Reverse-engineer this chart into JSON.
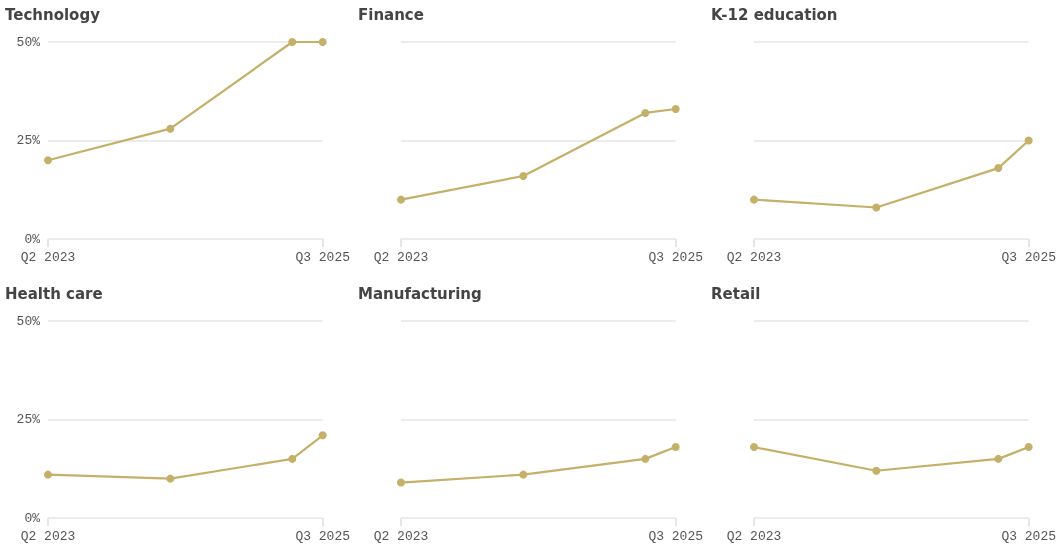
{
  "chart_data": [
    {
      "type": "line",
      "title": "Technology",
      "x": [
        "2023-04",
        "2024-04",
        "2025-04",
        "2025-07"
      ],
      "series": [
        {
          "color": "#c4b068",
          "values": [
            20,
            28,
            50,
            50
          ]
        }
      ],
      "xlim": [
        "2023-04",
        "2025-07"
      ],
      "xticks": [
        {
          "value": "2023-04",
          "label": "Q2 2023"
        },
        {
          "value": "2025-07",
          "label": "Q3 2025"
        }
      ],
      "ylim": [
        0,
        50
      ],
      "yticks": [
        {
          "value": 0,
          "label": "0%"
        },
        {
          "value": 25,
          "label": "25%"
        },
        {
          "value": 50,
          "label": "50%"
        }
      ],
      "grid": "y",
      "marker": "circle"
    },
    {
      "type": "line",
      "title": "Finance",
      "x": [
        "2023-04",
        "2024-04",
        "2025-04",
        "2025-07"
      ],
      "series": [
        {
          "color": "#c4b068",
          "values": [
            10,
            16,
            32,
            33
          ]
        }
      ],
      "xlim": [
        "2023-04",
        "2025-07"
      ],
      "xticks": [
        {
          "value": "2023-04",
          "label": "Q2 2023"
        },
        {
          "value": "2025-07",
          "label": "Q3 2025"
        }
      ],
      "ylim": [
        0,
        50
      ],
      "yticks": [
        0,
        25,
        50
      ],
      "grid": "y",
      "marker": "circle",
      "tick_labels": "x"
    },
    {
      "type": "line",
      "title": "K-12 education",
      "x": [
        "2023-04",
        "2024-04",
        "2025-04",
        "2025-07"
      ],
      "series": [
        {
          "color": "#c4b068",
          "values": [
            10,
            8,
            18,
            25
          ]
        }
      ],
      "xlim": [
        "2023-04",
        "2025-07"
      ],
      "xticks": [
        {
          "value": "2023-04",
          "label": "Q2 2023"
        },
        {
          "value": "2025-07",
          "label": "Q3 2025"
        }
      ],
      "ylim": [
        0,
        50
      ],
      "yticks": [
        0,
        25,
        50
      ],
      "grid": "y",
      "marker": "circle",
      "tick_labels": "x"
    },
    {
      "type": "line",
      "title": "Health care",
      "x": [
        "2023-04",
        "2024-04",
        "2025-04",
        "2025-07"
      ],
      "series": [
        {
          "color": "#c4b068",
          "values": [
            11,
            10,
            15,
            21
          ]
        }
      ],
      "xlim": [
        "2023-04",
        "2025-07"
      ],
      "xticks": [
        {
          "value": "2023-04",
          "label": "Q2 2023"
        },
        {
          "value": "2025-07",
          "label": "Q3 2025"
        }
      ],
      "ylim": [
        0,
        50
      ],
      "yticks": [
        {
          "value": 0,
          "label": "0%"
        },
        {
          "value": 25,
          "label": "25%"
        },
        {
          "value": 50,
          "label": "50%"
        }
      ],
      "grid": "y",
      "marker": "circle"
    },
    {
      "type": "line",
      "title": "Manufacturing",
      "x": [
        "2023-04",
        "2024-04",
        "2025-04",
        "2025-07"
      ],
      "series": [
        {
          "color": "#c4b068",
          "values": [
            9,
            11,
            15,
            18
          ]
        }
      ],
      "xlim": [
        "2023-04",
        "2025-07"
      ],
      "xticks": [
        {
          "value": "2023-04",
          "label": "Q2 2023"
        },
        {
          "value": "2025-07",
          "label": "Q3 2025"
        }
      ],
      "ylim": [
        0,
        50
      ],
      "yticks": [
        0,
        25,
        50
      ],
      "grid": "y",
      "marker": "circle",
      "tick_labels": "x"
    },
    {
      "type": "line",
      "title": "Retail",
      "x": [
        "2023-04",
        "2024-04",
        "2025-04",
        "2025-07"
      ],
      "series": [
        {
          "color": "#c4b068",
          "values": [
            18,
            12,
            15,
            18
          ]
        }
      ],
      "xlim": [
        "2023-04",
        "2025-07"
      ],
      "xticks": [
        {
          "value": "2023-04",
          "label": "Q2 2023"
        },
        {
          "value": "2025-07",
          "label": "Q3 2025"
        }
      ],
      "ylim": [
        0,
        50
      ],
      "yticks": [
        0,
        25,
        50
      ],
      "grid": "y",
      "marker": "circle",
      "tick_labels": "x"
    }
  ]
}
